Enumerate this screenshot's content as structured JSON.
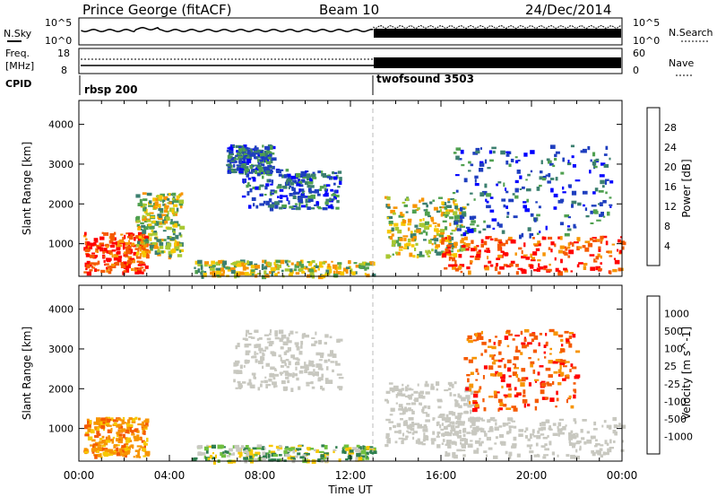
{
  "header": {
    "station": "Prince George (fitACF)",
    "beam": "Beam 10",
    "date": "24/Dec/2014"
  },
  "strips": {
    "nsky_label": "N.Sky",
    "nsearch_label": "N.Search",
    "nsky_ticks": [
      "10^5",
      "10^0"
    ],
    "nsearch_ticks": [
      "10^5",
      "10^0"
    ],
    "freq_label_1": "Freq.",
    "freq_label_2": "[MHz]",
    "freq_ticks": [
      "18",
      "8"
    ],
    "nave_label": "Nave",
    "nave_ticks": [
      "60",
      "0"
    ],
    "cpid_label": "CPID",
    "cpid_segments": [
      {
        "name": "rbsp 200",
        "start_hour": 0.0
      },
      {
        "name": "twofsound 3503",
        "start_hour": 13.0
      }
    ]
  },
  "chart_data": [
    {
      "type": "heatmap",
      "name": "power-panel",
      "ylabel": "Slant Range [km]",
      "yticks": [
        1000,
        2000,
        3000,
        4000
      ],
      "ylim": [
        180,
        4600
      ],
      "xlim_hours": [
        0,
        24
      ],
      "colorbar_label": "Power [dB]",
      "colorbar_ticks": [
        "28",
        "24",
        "20",
        "16",
        "12",
        "8",
        "4"
      ],
      "colorbar_colors": [
        "#0000ff",
        "#1f3fbf",
        "#3b7f6f",
        "#4fa04f",
        "#a8c832",
        "#f7c700",
        "#f79400",
        "#f55a00",
        "#ff0000"
      ],
      "echo_regions": [
        {
          "x0": 0.2,
          "x1": 3.0,
          "y0": 300,
          "y1": 1300,
          "level": "high"
        },
        {
          "x0": 2.5,
          "x1": 4.5,
          "y0": 700,
          "y1": 2300,
          "level": "mid"
        },
        {
          "x0": 6.5,
          "x1": 8.5,
          "y0": 2800,
          "y1": 3500,
          "level": "low"
        },
        {
          "x0": 7.2,
          "x1": 11.5,
          "y0": 1900,
          "y1": 2900,
          "level": "low"
        },
        {
          "x0": 5.0,
          "x1": 13.0,
          "y0": 200,
          "y1": 600,
          "level": "mid"
        },
        {
          "x0": 13.5,
          "x1": 17.0,
          "y0": 700,
          "y1": 2200,
          "level": "mid"
        },
        {
          "x0": 16.0,
          "x1": 24.0,
          "y0": 300,
          "y1": 1200,
          "level": "high"
        },
        {
          "x0": 16.5,
          "x1": 23.5,
          "y0": 1200,
          "y1": 3500,
          "level": "low"
        }
      ]
    },
    {
      "type": "heatmap",
      "name": "velocity-panel",
      "ylabel": "Slant Range [km]",
      "yticks": [
        1000,
        2000,
        3000,
        4000
      ],
      "ylim": [
        180,
        4600
      ],
      "xlabel": "Time UT",
      "xticks": [
        "00:00",
        "04:00",
        "08:00",
        "12:00",
        "16:00",
        "20:00",
        "00:00"
      ],
      "xlim_hours": [
        0,
        24
      ],
      "colorbar_label": "Velocity [m s^-1]",
      "colorbar_ticks": [
        "1000",
        "500",
        "100",
        "25",
        "-25",
        "-100",
        "-500",
        "-1000"
      ],
      "colorbar_colors": [
        "#1f3fbf",
        "#2f7f4f",
        "#6fbf3f",
        "#c8c8c0",
        "#c8c8c0",
        "#f7c700",
        "#f79400",
        "#f55a00",
        "#ff0000"
      ],
      "echo_regions": [
        {
          "x0": 0.2,
          "x1": 3.0,
          "y0": 300,
          "y1": 1300,
          "level": "neg-mid"
        },
        {
          "x0": 6.8,
          "x1": 11.5,
          "y0": 2000,
          "y1": 3500,
          "level": "ground"
        },
        {
          "x0": 13.5,
          "x1": 17.5,
          "y0": 600,
          "y1": 2200,
          "level": "ground"
        },
        {
          "x0": 16.0,
          "x1": 24.0,
          "y0": 300,
          "y1": 1300,
          "level": "ground"
        },
        {
          "x0": 17.0,
          "x1": 22.0,
          "y0": 1500,
          "y1": 3500,
          "level": "neg-high"
        },
        {
          "x0": 5.0,
          "x1": 13.0,
          "y0": 200,
          "y1": 600,
          "level": "pos-low"
        }
      ]
    }
  ]
}
